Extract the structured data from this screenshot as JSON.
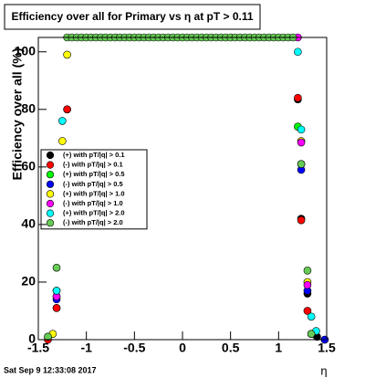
{
  "chart_data": {
    "type": "scatter",
    "title": "Efficiency over all for Primary vs   η at pT > 0.11",
    "y_label": "Efficiency over all (%)",
    "x_label": "η",
    "timestamp": "Sat Sep  9 12:33:08 2017",
    "xlim": [
      -1.5,
      1.5
    ],
    "ylim": [
      0,
      105
    ],
    "xticks": [
      -1.5,
      -1,
      -0.5,
      0,
      0.5,
      1,
      1.5
    ],
    "yticks": [
      0,
      20,
      40,
      60,
      80,
      100
    ],
    "legend": "top-left",
    "series": [
      {
        "name": "(+) with pT/|q| > 0.1",
        "color": "#000000",
        "x": [
          -1.4,
          -1.31,
          -1.2,
          1.2,
          1.235,
          1.3,
          1.4
        ],
        "values": [
          1,
          11,
          80,
          83.5,
          42,
          16,
          1
        ]
      },
      {
        "name": "(-) with pT/|q| > 0.1",
        "color": "#ff0000",
        "x": [
          -1.4,
          -1.31,
          -1.23,
          -1.2,
          1.2,
          1.235,
          1.3,
          1.48
        ],
        "values": [
          0,
          11,
          42.7,
          80,
          84,
          41.5,
          10,
          0
        ]
      },
      {
        "name": "(+) with pT/|q| > 0.5",
        "color": "#00ff00",
        "x": [
          -1.31,
          1.2,
          1.235
        ],
        "values": [
          15,
          74,
          61
        ]
      },
      {
        "name": "(-) with pT/|q| > 0.5",
        "color": "#0000ff",
        "x": [
          -1.31,
          1.235,
          1.3,
          1.48
        ],
        "values": [
          14,
          59,
          17,
          0
        ]
      },
      {
        "name": "(+) with pT/|q| > 1.0",
        "color": "#ffff00",
        "x": [
          -1.35,
          -1.31,
          -1.25,
          -1.2,
          1.235,
          1.3
        ],
        "values": [
          2,
          17,
          69,
          99,
          69,
          20
        ]
      },
      {
        "name": "(-) with pT/|q| > 1.0",
        "color": "#ff00ff",
        "x": [
          -1.31,
          -1.25,
          1.2,
          1.235,
          1.3,
          1.34
        ],
        "values": [
          15,
          60,
          105,
          68.5,
          19,
          2
        ]
      },
      {
        "name": "(+) with pT/|q| > 2.0",
        "color": "#00ffff",
        "x": [
          -1.31,
          -1.25,
          1.2,
          1.235,
          1.34,
          1.39
        ],
        "values": [
          17,
          76,
          100,
          73,
          8,
          3
        ]
      },
      {
        "name": "(-) with pT/|q| > 2.0",
        "color": "#66cc55",
        "x": [
          -1.4,
          -1.31,
          -1.2,
          -1.15,
          -1.1,
          -1.05,
          -1,
          -0.95,
          -0.9,
          -0.85,
          -0.8,
          -0.75,
          -0.7,
          -0.65,
          -0.6,
          -0.55,
          -0.5,
          -0.45,
          -0.4,
          -0.35,
          -0.3,
          -0.25,
          -0.2,
          -0.15,
          -0.1,
          -0.05,
          0,
          0.05,
          0.1,
          0.15,
          0.2,
          0.25,
          0.3,
          0.35,
          0.4,
          0.45,
          0.5,
          0.55,
          0.6,
          0.65,
          0.7,
          0.75,
          0.8,
          0.85,
          0.9,
          0.95,
          1,
          1.05,
          1.1,
          1.15,
          1.235,
          1.3,
          1.34
        ],
        "values": [
          1,
          25,
          105,
          105,
          105,
          105,
          105,
          105,
          105,
          105,
          105,
          105,
          105,
          105,
          105,
          105,
          105,
          105,
          105,
          105,
          105,
          105,
          105,
          105,
          105,
          105,
          105,
          105,
          105,
          105,
          105,
          105,
          105,
          105,
          105,
          105,
          105,
          105,
          105,
          105,
          105,
          105,
          105,
          105,
          105,
          105,
          105,
          105,
          105,
          105,
          61,
          24,
          2
        ]
      }
    ]
  }
}
